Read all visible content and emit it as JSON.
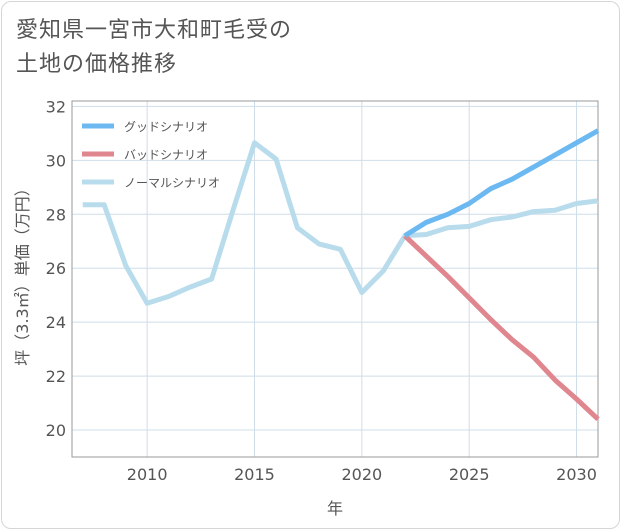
{
  "title": {
    "line1": "愛知県一宮市大和町毛受の",
    "line2": "土地の価格推移"
  },
  "chart_data": {
    "type": "line",
    "xlabel": "年",
    "ylabel": "坪（3.3㎡）単価（万円）",
    "xlim": [
      2006.5,
      2031
    ],
    "ylim": [
      19,
      32.2
    ],
    "xticks": [
      2010,
      2015,
      2020,
      2025,
      2030
    ],
    "yticks": [
      20,
      22,
      24,
      26,
      28,
      30,
      32
    ],
    "grid": true,
    "legend_position": "top-left",
    "series": [
      {
        "name": "グッドシナリオ",
        "color": "#6cb8f0",
        "x": [
          2022,
          2023,
          2024,
          2025,
          2026,
          2027,
          2028,
          2029,
          2030,
          2031
        ],
        "values": [
          27.2,
          27.7,
          28.0,
          28.4,
          28.95,
          29.3,
          29.75,
          30.2,
          30.65,
          31.1
        ]
      },
      {
        "name": "バッドシナリオ",
        "color": "#e0868e",
        "x": [
          2022,
          2023,
          2024,
          2025,
          2026,
          2027,
          2028,
          2029,
          2030,
          2031
        ],
        "values": [
          27.2,
          26.45,
          25.7,
          24.9,
          24.1,
          23.35,
          22.7,
          21.85,
          21.15,
          20.4
        ]
      },
      {
        "name": "ノーマルシナリオ",
        "color": "#b8dcec",
        "x": [
          2007,
          2008,
          2009,
          2010,
          2011,
          2012,
          2013,
          2014,
          2015,
          2016,
          2017,
          2018,
          2019,
          2020,
          2021,
          2022,
          2023,
          2024,
          2025,
          2026,
          2027,
          2028,
          2029,
          2030,
          2031
        ],
        "values": [
          28.35,
          28.35,
          26.1,
          24.7,
          24.95,
          25.3,
          25.6,
          28.15,
          30.65,
          30.05,
          27.5,
          26.9,
          26.7,
          25.1,
          25.9,
          27.2,
          27.25,
          27.5,
          27.55,
          27.8,
          27.9,
          28.1,
          28.15,
          28.4,
          28.5
        ]
      }
    ]
  }
}
